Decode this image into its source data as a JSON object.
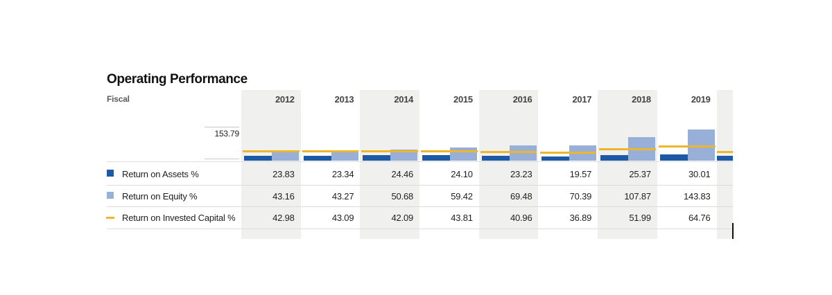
{
  "title": "Operating Performance",
  "fiscal_label": "Fiscal",
  "axis": {
    "max_label": "153.79",
    "min_value": 0,
    "max_value": 153.79
  },
  "legend": {
    "items": [
      {
        "label": "Return on Assets %",
        "icon": "dark-blue-square-icon"
      },
      {
        "label": "Return on Equity %",
        "icon": "light-blue-square-icon"
      },
      {
        "label": "Return on Invested Capital %",
        "icon": "yellow-dash-icon"
      }
    ]
  },
  "colors": {
    "return_on_assets": "#1d59a5",
    "return_on_equity": "#98b0d7",
    "return_on_invested_capital": "#efb62c",
    "column_shading": "#f0f0ef",
    "separator": "#dcdcdc",
    "tick": "#c9c9c9"
  },
  "chart_data": {
    "type": "bar",
    "title": "Operating Performance",
    "xlabel": "Fiscal",
    "ylabel": "",
    "ylim": [
      0,
      153.79
    ],
    "grid": false,
    "legend_position": "left-rows",
    "categories": [
      "2012",
      "2013",
      "2014",
      "2015",
      "2016",
      "2017",
      "2018",
      "2019"
    ],
    "series": [
      {
        "name": "Return on Assets %",
        "type": "bar",
        "color": "#1d59a5",
        "values": [
          23.83,
          23.34,
          24.46,
          24.1,
          23.23,
          19.57,
          25.37,
          30.01
        ]
      },
      {
        "name": "Return on Equity %",
        "type": "bar",
        "color": "#98b0d7",
        "values": [
          43.16,
          43.27,
          50.68,
          59.42,
          69.48,
          70.39,
          107.87,
          143.83
        ]
      },
      {
        "name": "Return on Invested Capital %",
        "type": "line-segment",
        "color": "#efb62c",
        "values": [
          42.98,
          43.09,
          42.09,
          43.81,
          40.96,
          36.89,
          51.99,
          64.76
        ]
      }
    ],
    "partial_right_column": {
      "estimated": true,
      "return_on_assets": 22,
      "return_on_invested_capital": 39
    }
  }
}
